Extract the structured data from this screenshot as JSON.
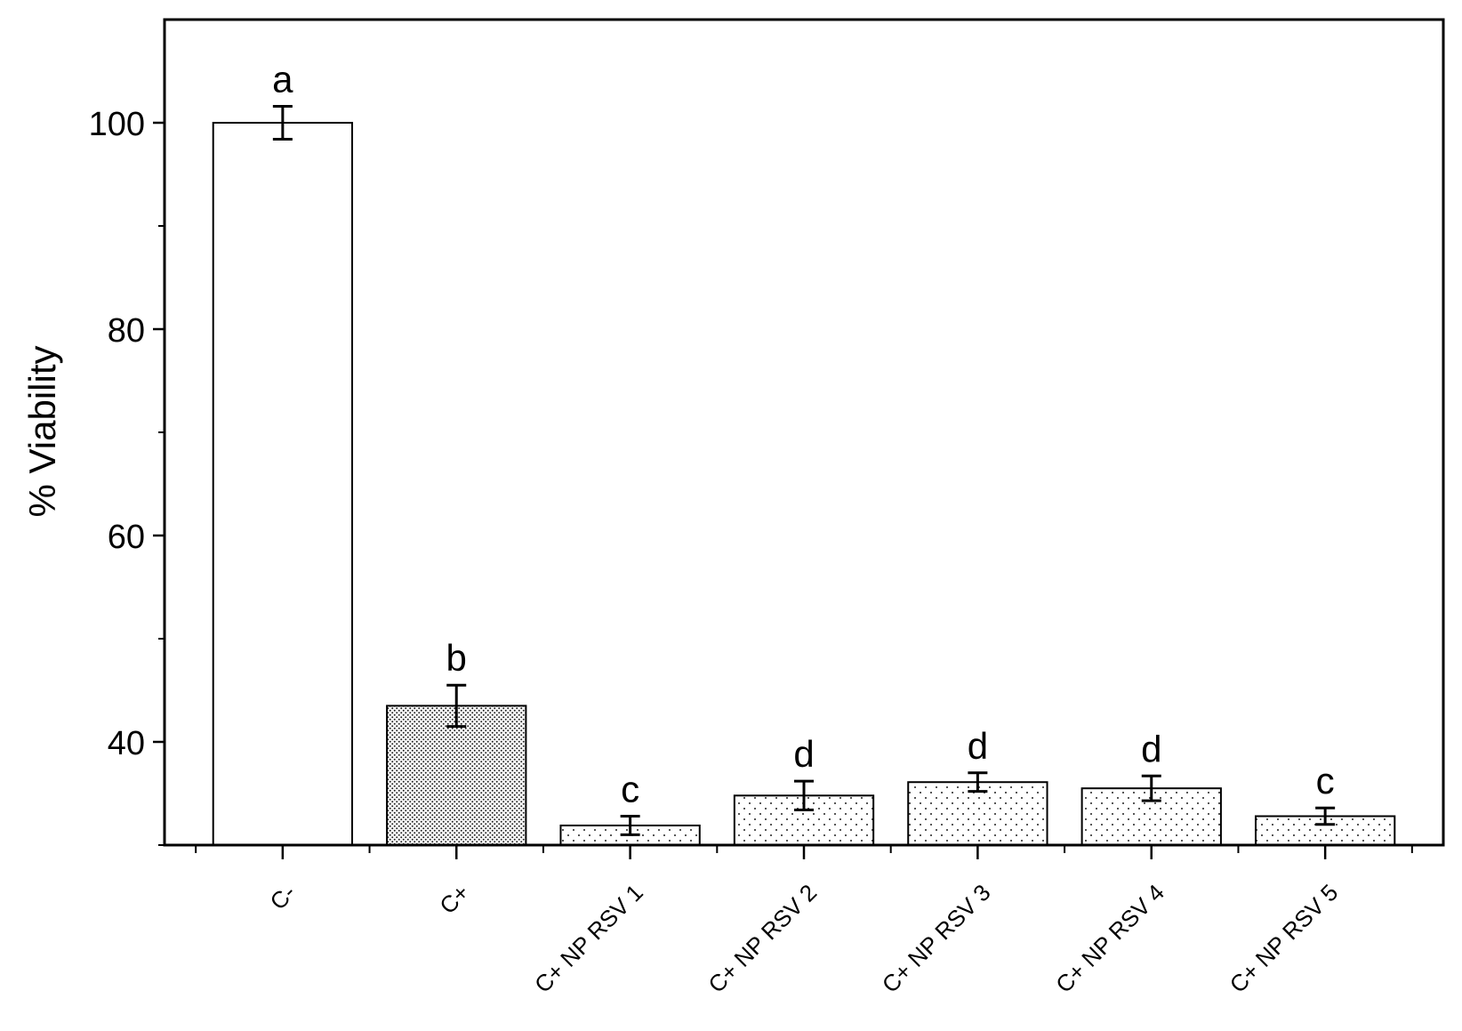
{
  "chart_data": {
    "type": "bar",
    "title": "",
    "xlabel": "",
    "ylabel": "% Viability",
    "ylim": [
      30,
      110
    ],
    "yticks": [
      40,
      60,
      80,
      100
    ],
    "y_minor_step": 10,
    "grid": false,
    "legend": "none",
    "categories": [
      "C-",
      "C+",
      "C+ NP RSV 1",
      "C+ NP RSV 2",
      "C+ NP RSV 3",
      "C+ NP RSV 4",
      "C+ NP RSV 5"
    ],
    "values": [
      100,
      43.5,
      31.9,
      34.8,
      36.1,
      35.5,
      32.8
    ],
    "errors": [
      1.6,
      2.0,
      0.9,
      1.4,
      0.9,
      1.2,
      0.8
    ],
    "significance_letters": [
      "a",
      "b",
      "c",
      "d",
      "d",
      "d",
      "c"
    ],
    "bar_patterns": [
      "none",
      "dense-dots",
      "sparse-dots",
      "sparse-dots",
      "sparse-dots",
      "sparse-dots",
      "sparse-dots"
    ]
  }
}
